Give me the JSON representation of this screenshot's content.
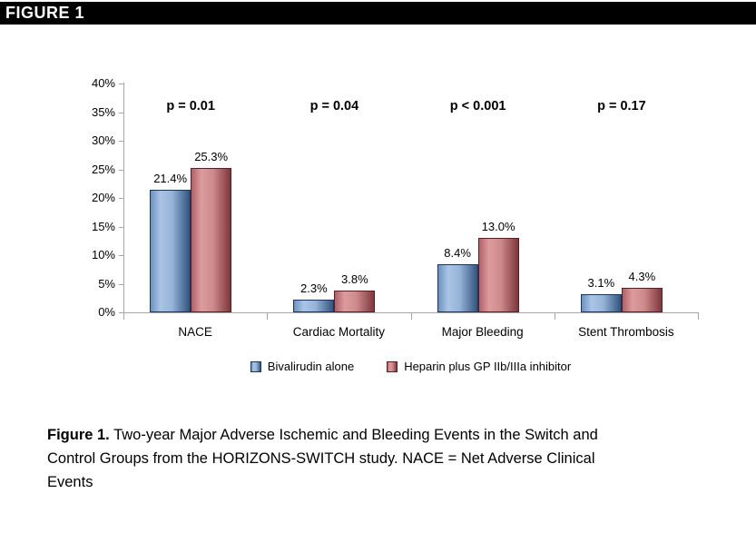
{
  "header": {
    "title": "FIGURE 1"
  },
  "chart_data": {
    "type": "bar",
    "title": "",
    "categories": [
      "NACE",
      "Cardiac Mortality",
      "Major Bleeding",
      "Stent Thrombosis"
    ],
    "series": [
      {
        "name": "Bivalirudin alone",
        "values": [
          21.4,
          2.3,
          8.4,
          3.1
        ],
        "labels": [
          "21.4%",
          "2.3%",
          "8.4%",
          "3.1%"
        ],
        "gradient": [
          "#6C92C1",
          "#AAC4E4",
          "#96B3D8",
          "#31547E"
        ],
        "border": "#17375E"
      },
      {
        "name": "Heparin plus GP IIb/IIIa inhibitor",
        "values": [
          25.3,
          3.8,
          13.0,
          4.3
        ],
        "labels": [
          "25.3%",
          "3.8%",
          "13.0%",
          "4.3%"
        ],
        "gradient": [
          "#B26065",
          "#DC9C9E",
          "#CE8A8D",
          "#7E373B"
        ],
        "border": "#5A1F22"
      }
    ],
    "p_values": [
      "p = 0.01",
      "p = 0.04",
      "p < 0.001",
      "p = 0.17"
    ],
    "y_ticks": [
      "0%",
      "5%",
      "10%",
      "15%",
      "20%",
      "25%",
      "30%",
      "35%",
      "40%"
    ],
    "ylim": [
      0,
      40
    ],
    "grid": false,
    "legend_position": "bottom",
    "axis_color": "#A6A6A6",
    "text_color": "#000000"
  },
  "caption": {
    "label": "Figure 1.",
    "lines": [
      "Two-year Major Adverse Ischemic and Bleeding Events in the Switch and",
      "Control Groups from the HORIZONS-SWITCH study. NACE = Net Adverse Clinical",
      "Events"
    ]
  }
}
